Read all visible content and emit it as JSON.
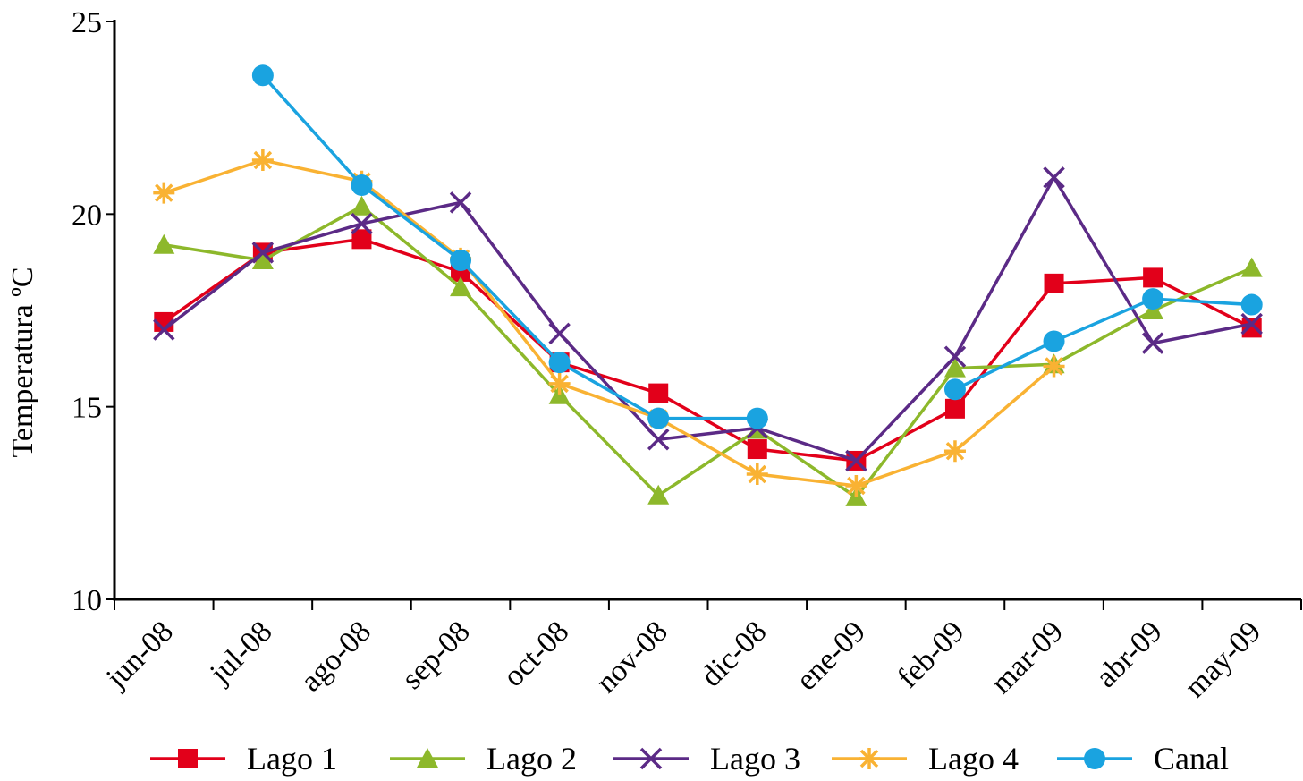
{
  "chart_data": {
    "type": "line",
    "title": "",
    "xlabel": "",
    "ylabel": "Temperatura ºC",
    "ylim": [
      10,
      25
    ],
    "yticks": [
      10,
      15,
      20,
      25
    ],
    "grid": false,
    "legend": "bottom",
    "categories": [
      "jun-08",
      "jul-08",
      "ago-08",
      "sep-08",
      "oct-08",
      "nov-08",
      "dic-08",
      "ene-09",
      "feb-09",
      "mar-09",
      "abr-09",
      "may-09"
    ],
    "series": [
      {
        "name": "Lago 1",
        "color": "#e2001a",
        "marker": "square",
        "values": [
          17.2,
          19.0,
          19.35,
          18.5,
          16.15,
          15.35,
          13.9,
          13.6,
          14.95,
          18.2,
          18.35,
          17.05
        ]
      },
      {
        "name": "Lago 2",
        "color": "#8db82b",
        "marker": "triangle",
        "values": [
          19.2,
          18.8,
          20.2,
          18.1,
          15.3,
          12.7,
          14.4,
          12.65,
          16.0,
          16.1,
          17.5,
          18.6
        ]
      },
      {
        "name": "Lago 3",
        "color": "#5b2a86",
        "marker": "x",
        "values": [
          17.0,
          19.0,
          19.75,
          20.3,
          16.9,
          14.15,
          14.45,
          13.6,
          16.3,
          20.95,
          16.65,
          17.15
        ]
      },
      {
        "name": "Lago 4",
        "color": "#f9b233",
        "marker": "star",
        "values": [
          20.55,
          21.4,
          20.85,
          18.85,
          15.6,
          14.7,
          13.25,
          12.95,
          13.85,
          16.05,
          null,
          null
        ]
      },
      {
        "name": "Canal",
        "color": "#1aa3e0",
        "marker": "circle",
        "values": [
          null,
          23.6,
          20.75,
          18.8,
          16.15,
          14.7,
          14.7,
          null,
          15.45,
          16.7,
          17.8,
          17.65
        ]
      }
    ]
  }
}
